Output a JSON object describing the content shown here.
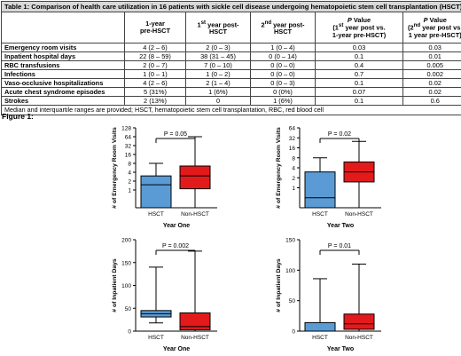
{
  "table": {
    "caption": "Table 1: Comparison of health care utilization in 16 patients with sickle cell disease undergoing hematopoietic stem cell transplantation (HSCT).",
    "headers": [
      "",
      "1-year pre-HSCT",
      "1st year post-HSCT",
      "2nd year post-HSCT",
      "P Value (1st year post vs. 1-year pre-HSCT)",
      "P Value (2nd year post vs. 1 year pre-HSCT)"
    ],
    "rows": [
      {
        "label": "Emergency room visits",
        "cells": [
          "4 (2 – 6)",
          "2 (0 – 3)",
          "1 (0 – 4)",
          "0.03",
          "0.03"
        ]
      },
      {
        "label": "Inpatient hospital days",
        "cells": [
          "22 (8 – 59)",
          "38 (31 – 45)",
          "0 (0 – 14)",
          "0.1",
          "0.01"
        ]
      },
      {
        "label": "RBC transfusions",
        "cells": [
          "2 (0 – 7)",
          "7 (0 – 10)",
          "0 (0 – 0)",
          "0.4",
          "0.005"
        ]
      },
      {
        "label": "Infections",
        "cells": [
          "1 (0 – 1)",
          "1 (0 – 2)",
          "0 (0 – 0)",
          "0.7",
          "0.002"
        ]
      },
      {
        "label": "Vaso-occlusive hospitalizations",
        "cells": [
          "4 (2 – 6)",
          "2 (1 – 4)",
          "0 (0 – 3)",
          "0.1",
          "0.02"
        ]
      },
      {
        "label": "Acute chest syndrome episodes",
        "cells": [
          "5 (31%)",
          "1 (6%)",
          "0 (0%)",
          "0.07",
          "0.02"
        ]
      },
      {
        "label": "Strokes",
        "cells": [
          "2 (13%)",
          "0",
          "1 (6%)",
          "0.1",
          "0.6"
        ]
      }
    ],
    "footnote": "Median and interquartile ranges are provided; HSCT, hematopoietic stem cell transplantation, RBC, red blood cell"
  },
  "figure_title": "Figure 1:",
  "colors": {
    "hsct": "#5b9bd5",
    "non_hsct": "#e31a1c"
  },
  "chart_data": [
    {
      "type": "boxplot",
      "ylabel": "# of Emergency Room Visits",
      "xlabel": "Year One",
      "y_scale": "log2",
      "yticks": [
        128,
        64,
        32,
        16,
        8,
        4,
        2,
        1
      ],
      "ylim": [
        0.25,
        128
      ],
      "categories": [
        "HSCT",
        "Non-HSCT"
      ],
      "boxes": [
        {
          "min": 0.25,
          "q1": 0.25,
          "median": 1.5,
          "q3": 3,
          "max": 8
        },
        {
          "min": 0.25,
          "q1": 1.1,
          "median": 3,
          "q3": 6.5,
          "max": 64
        }
      ],
      "annotation": "P = 0.05"
    },
    {
      "type": "boxplot",
      "ylabel": "# of Emergency Room Visits",
      "xlabel": "Year Two",
      "y_scale": "log2",
      "yticks": [
        64,
        32,
        16,
        8,
        4,
        2,
        1
      ],
      "ylim": [
        0.25,
        64
      ],
      "categories": [
        "HSCT",
        "Non-HSCT"
      ],
      "boxes": [
        {
          "min": 0.25,
          "q1": 0.25,
          "median": 0.5,
          "q3": 3,
          "max": 8
        },
        {
          "min": 0.25,
          "q1": 1.5,
          "median": 3,
          "q3": 6,
          "max": 25
        }
      ],
      "annotation": "P = 0.02"
    },
    {
      "type": "boxplot",
      "ylabel": "# of Inpatient Days",
      "xlabel": "Year One",
      "yticks": [
        0,
        50,
        100,
        150,
        200
      ],
      "ylim": [
        0,
        200
      ],
      "categories": [
        "HSCT",
        "Non-HSCT"
      ],
      "boxes": [
        {
          "min": 18,
          "q1": 31,
          "median": 38,
          "q3": 45,
          "max": 140
        },
        {
          "min": 0,
          "q1": 3,
          "median": 10,
          "q3": 40,
          "max": 175
        }
      ],
      "annotation": "P = 0.002"
    },
    {
      "type": "boxplot",
      "ylabel": "# of Inpatient Days",
      "xlabel": "Year Two",
      "yticks": [
        0,
        50,
        100,
        150
      ],
      "ylim": [
        0,
        150
      ],
      "categories": [
        "HSCT",
        "Non-HSCT"
      ],
      "boxes": [
        {
          "min": 0,
          "q1": 0,
          "median": 0,
          "q3": 14,
          "max": 86
        },
        {
          "min": 0,
          "q1": 3,
          "median": 12,
          "q3": 28,
          "max": 110
        }
      ],
      "annotation": "P = 0.01"
    }
  ]
}
